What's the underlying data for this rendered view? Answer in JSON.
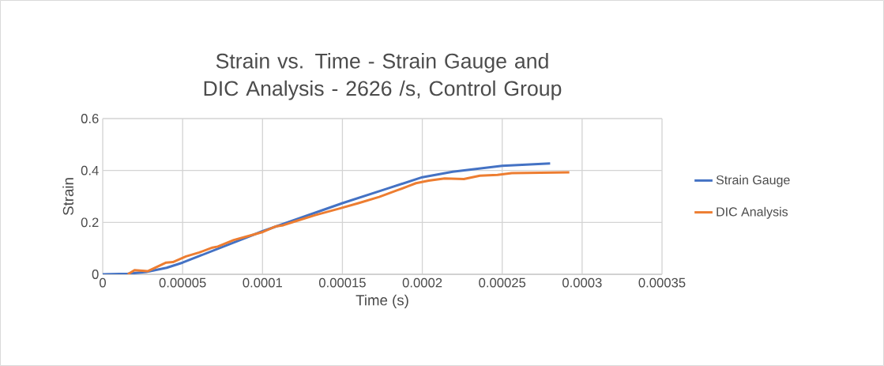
{
  "chart_data": {
    "type": "line",
    "title": "Strain vs. Time - Strain Gauge and DIC Analysis - 2626 /s, Control Group",
    "xlabel": "Time (s)",
    "ylabel": "Strain",
    "xlim": [
      0,
      0.00035
    ],
    "ylim": [
      0,
      0.6
    ],
    "xticks": [
      {
        "value": 0,
        "label": "0"
      },
      {
        "value": 5e-05,
        "label": "0.00005"
      },
      {
        "value": 0.0001,
        "label": "0.0001"
      },
      {
        "value": 0.00015,
        "label": "0.00015"
      },
      {
        "value": 0.0002,
        "label": "0.0002"
      },
      {
        "value": 0.00025,
        "label": "0.00025"
      },
      {
        "value": 0.0003,
        "label": "0.0003"
      },
      {
        "value": 0.00035,
        "label": "0.00035"
      }
    ],
    "yticks": [
      0,
      0.2,
      0.4,
      0.6
    ],
    "grid": true,
    "legend": "right",
    "marker": "none",
    "line_style": "solid",
    "series": [
      {
        "name": "Strain Gauge",
        "color": "#4472c4",
        "x": [
          0,
          1.57e-05,
          2.73e-05,
          4e-05,
          5e-05,
          0.0001,
          0.00015,
          0.000178,
          0.0002,
          0.000219,
          0.00025,
          0.00028
        ],
        "values": [
          0,
          0.002,
          0.009,
          0.025,
          0.045,
          0.166,
          0.274,
          0.33,
          0.374,
          0.395,
          0.418,
          0.427
        ]
      },
      {
        "name": "DIC Analysis",
        "color": "#ed7d31",
        "x": [
          1.57e-05,
          1.99e-05,
          2.81e-05,
          3.97e-05,
          4.39e-05,
          5.21e-05,
          6.04e-05,
          6.87e-05,
          7.2e-05,
          8.2e-05,
          8.86e-05,
          0.0001002,
          0.000108,
          0.000113,
          0.000122,
          0.000133,
          0.000148,
          0.00016,
          0.000173,
          0.000184,
          0.000191,
          0.000196,
          0.000204,
          0.000214,
          0.000226,
          0.000236,
          0.000247,
          0.000256,
          0.000292
        ],
        "values": [
          0,
          0.016,
          0.012,
          0.045,
          0.047,
          0.069,
          0.084,
          0.103,
          0.107,
          0.132,
          0.143,
          0.163,
          0.184,
          0.189,
          0.207,
          0.228,
          0.253,
          0.274,
          0.298,
          0.323,
          0.339,
          0.351,
          0.361,
          0.369,
          0.367,
          0.38,
          0.383,
          0.39,
          0.393
        ]
      }
    ]
  }
}
